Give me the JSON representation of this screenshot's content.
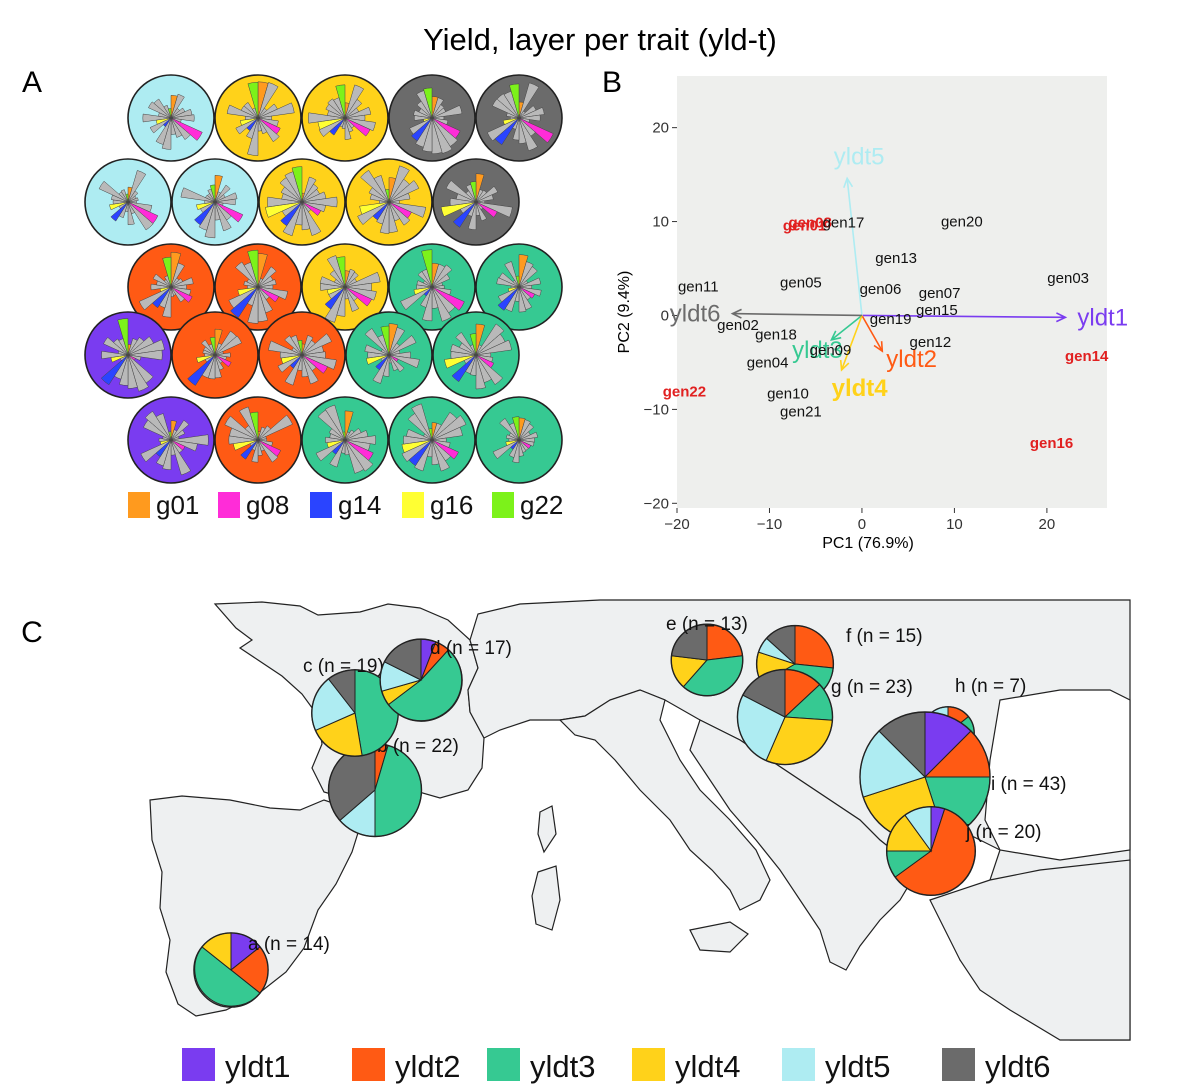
{
  "title": "Yield, layer per trait (yld-t)",
  "panels": {
    "A": "A",
    "B": "B",
    "C": "C"
  },
  "colors": {
    "yldt1": "#7a3cf0",
    "yldt2": "#ff5a14",
    "yldt3": "#36c992",
    "yldt4": "#ffd21a",
    "yldt5": "#aeecf2",
    "yldt6": "#6b6b6b",
    "g01": "#ff9a1e",
    "g08": "#ff2cd8",
    "g14": "#2a44ff",
    "g16": "#ffff33",
    "g22": "#7cf21a",
    "petal": "#b9b9b9",
    "biplot_bg": "#eeefed",
    "map_land": "#eef0f1",
    "highlight_label": "#e12020"
  },
  "chart_data": [
    {
      "panel": "A",
      "type": "other",
      "description_kind": "grid of star glyphs on colored discs",
      "legend": [
        {
          "label": "g01",
          "color_key": "g01"
        },
        {
          "label": "g08",
          "color_key": "g08"
        },
        {
          "label": "g14",
          "color_key": "g14"
        },
        {
          "label": "g16",
          "color_key": "g16"
        },
        {
          "label": "g22",
          "color_key": "g22"
        }
      ],
      "rows": [
        [
          "yldt5",
          "yldt4",
          "yldt4",
          "yldt6",
          "yldt6"
        ],
        [
          "yldt5",
          "yldt5",
          "yldt4",
          "yldt4",
          "yldt6"
        ],
        [
          "yldt2",
          "yldt2",
          "yldt4",
          "yldt3",
          "yldt3"
        ],
        [
          "yldt1",
          "yldt2",
          "yldt2",
          "yldt3",
          "yldt3"
        ],
        [
          "yldt1",
          "yldt2",
          "yldt3",
          "yldt3",
          "yldt3"
        ]
      ]
    },
    {
      "panel": "B",
      "type": "scatter",
      "xlabel": "PC1 (76.9%)",
      "ylabel": "PC2 (9.4%)",
      "xlim": [
        -20,
        26.5
      ],
      "ylim": [
        -20.5,
        25.5
      ],
      "xticks": [
        -20,
        -10,
        0,
        10,
        20
      ],
      "yticks": [
        -20,
        -10,
        0,
        10,
        20
      ],
      "points": [
        {
          "label": "gen01",
          "x": -6.2,
          "y": 9.6,
          "highlight": true
        },
        {
          "label": "gen08",
          "x": -5.6,
          "y": 9.9,
          "highlight": true
        },
        {
          "label": "gen17",
          "x": -2.0,
          "y": 9.9,
          "highlight": false
        },
        {
          "label": "gen20",
          "x": 10.8,
          "y": 10.0,
          "highlight": false
        },
        {
          "label": "gen13",
          "x": 3.7,
          "y": 6.1,
          "highlight": false
        },
        {
          "label": "gen03",
          "x": 22.3,
          "y": 4.0,
          "highlight": false
        },
        {
          "label": "gen11",
          "x": -17.7,
          "y": 3.1,
          "highlight": false
        },
        {
          "label": "gen05",
          "x": -6.6,
          "y": 3.5,
          "highlight": false
        },
        {
          "label": "gen06",
          "x": 2.0,
          "y": 2.8,
          "highlight": false
        },
        {
          "label": "gen07",
          "x": 8.4,
          "y": 2.4,
          "highlight": false
        },
        {
          "label": "gen15",
          "x": 8.1,
          "y": 0.6,
          "highlight": false
        },
        {
          "label": "gen19",
          "x": 3.1,
          "y": -0.4,
          "highlight": false
        },
        {
          "label": "gen02",
          "x": -13.4,
          "y": -1.0,
          "highlight": false
        },
        {
          "label": "gen18",
          "x": -9.3,
          "y": -2.0,
          "highlight": false
        },
        {
          "label": "gen12",
          "x": 7.4,
          "y": -2.8,
          "highlight": false
        },
        {
          "label": "gen09",
          "x": -3.4,
          "y": -3.7,
          "highlight": false
        },
        {
          "label": "gen14",
          "x": 24.3,
          "y": -4.3,
          "highlight": true
        },
        {
          "label": "gen04",
          "x": -10.2,
          "y": -5.0,
          "highlight": false
        },
        {
          "label": "gen22",
          "x": -19.2,
          "y": -8.1,
          "highlight": true
        },
        {
          "label": "gen10",
          "x": -8.0,
          "y": -8.3,
          "highlight": false
        },
        {
          "label": "gen21",
          "x": -6.6,
          "y": -10.2,
          "highlight": false
        },
        {
          "label": "gen16",
          "x": 20.5,
          "y": -13.6,
          "highlight": true
        }
      ],
      "vectors": [
        {
          "label": "yldt1",
          "x": 22.0,
          "y": -0.2,
          "color_key": "yldt1"
        },
        {
          "label": "yldt2",
          "x": 2.2,
          "y": -3.8,
          "color_key": "yldt2"
        },
        {
          "label": "yldt3",
          "x": -3.3,
          "y": -2.6,
          "color_key": "yldt3"
        },
        {
          "label": "yldt4",
          "x": -2.2,
          "y": -5.8,
          "color_key": "yldt4"
        },
        {
          "label": "yldt5",
          "x": -1.6,
          "y": 14.6,
          "color_key": "yldt5"
        },
        {
          "label": "yldt6",
          "x": -14.0,
          "y": 0.2,
          "color_key": "yldt6"
        }
      ]
    },
    {
      "panel": "C",
      "type": "pie",
      "legend": [
        {
          "label": "yldt1",
          "color_key": "yldt1"
        },
        {
          "label": "yldt2",
          "color_key": "yldt2"
        },
        {
          "label": "yldt3",
          "color_key": "yldt3"
        },
        {
          "label": "yldt4",
          "color_key": "yldt4"
        },
        {
          "label": "yldt5",
          "color_key": "yldt5"
        },
        {
          "label": "yldt6",
          "color_key": "yldt6"
        }
      ],
      "sites": [
        {
          "label": "a (n = 14)",
          "n": 14,
          "slices": [
            2,
            3,
            7,
            2,
            0,
            0
          ]
        },
        {
          "label": "b (n = 22)",
          "n": 22,
          "slices": [
            0,
            1,
            10,
            0,
            3,
            8
          ]
        },
        {
          "label": "c (n = 19)",
          "n": 19,
          "slices": [
            0,
            0,
            9,
            4,
            4,
            2
          ]
        },
        {
          "label": "d (n = 17)",
          "n": 17,
          "slices": [
            1,
            1,
            9,
            1,
            2,
            3
          ]
        },
        {
          "label": "e (n = 13)",
          "n": 13,
          "slices": [
            0,
            3,
            5,
            2,
            0,
            3
          ]
        },
        {
          "label": "f (n = 15)",
          "n": 15,
          "slices": [
            0,
            4,
            6,
            2,
            1,
            2
          ]
        },
        {
          "label": "g (n = 23)",
          "n": 23,
          "slices": [
            0,
            3,
            3,
            7,
            6,
            4
          ]
        },
        {
          "label": "h (n = 7)",
          "n": 7,
          "slices": [
            0,
            1,
            4,
            0,
            2,
            0
          ]
        },
        {
          "label": "i (n = 43)",
          "n": 43,
          "slices": [
            5,
            5,
            8,
            10,
            7,
            5
          ]
        },
        {
          "label": "j (n = 20)",
          "n": 20,
          "slices": [
            1,
            12,
            2,
            3,
            2,
            0
          ]
        }
      ]
    }
  ]
}
